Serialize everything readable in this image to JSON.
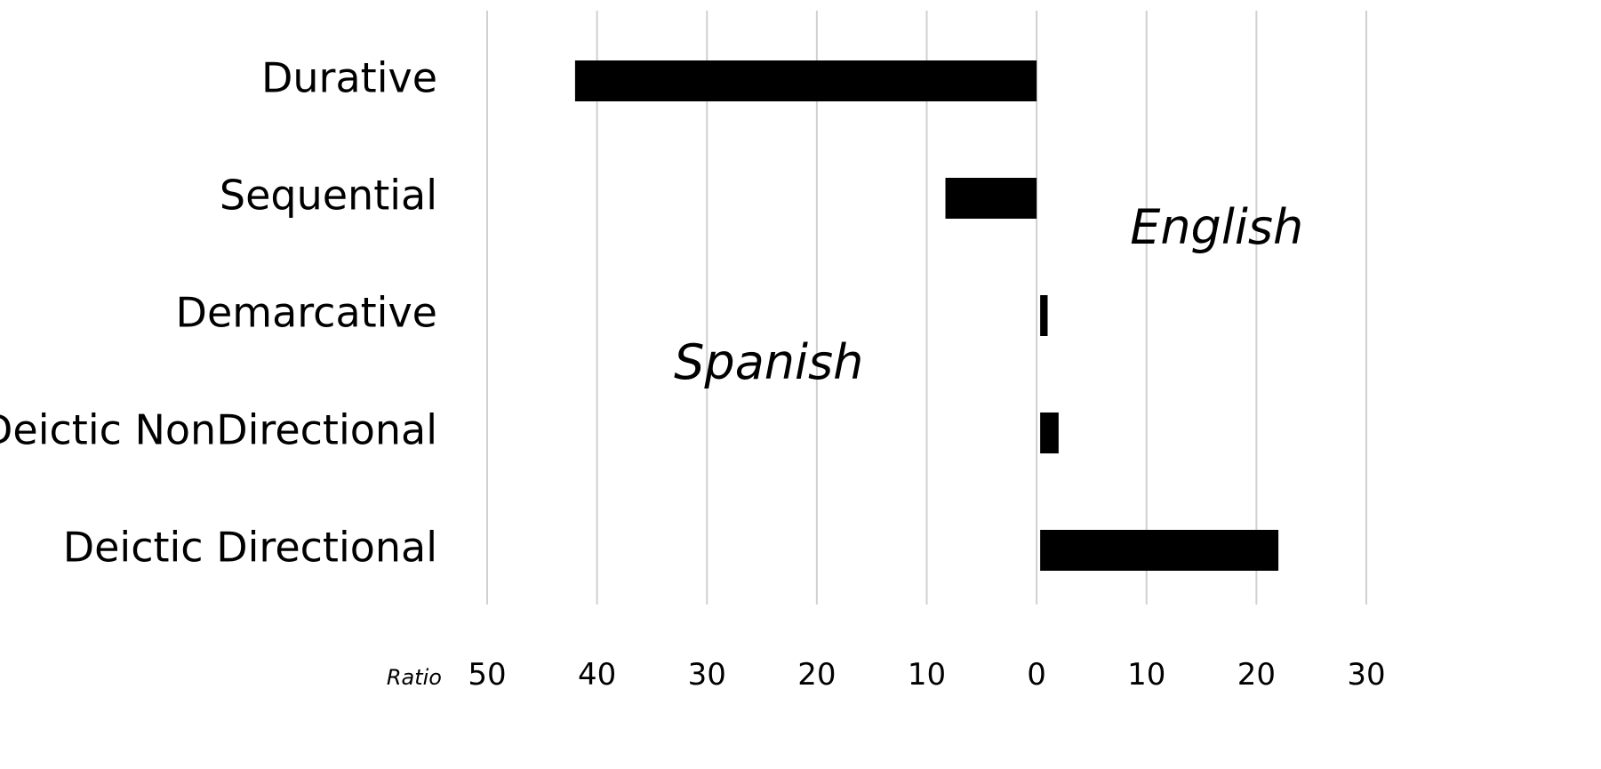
{
  "chart_data": {
    "type": "bar",
    "orientation": "horizontal",
    "categories": [
      "Durative",
      "Sequential",
      "Demarcative",
      "Deictic NonDirectional",
      "Deictic Directional"
    ],
    "values": [
      -42,
      -8.3,
      1,
      2,
      22
    ],
    "xlim": [
      -50,
      30
    ],
    "xticks": [
      -50,
      -40,
      -30,
      -20,
      -10,
      0,
      10,
      20,
      30
    ],
    "xtick_labels": [
      "50",
      "40",
      "30",
      "20",
      "10",
      "0",
      "10",
      "20",
      "30"
    ],
    "xlabel": "Ratio",
    "grid": true,
    "legend": "none",
    "annotations": [
      {
        "text": "Spanish",
        "x": -33,
        "category_index": 2.4
      },
      {
        "text": "English",
        "x": 8.5,
        "category_index": 1.25
      }
    ],
    "bar_color": "#000000",
    "grid_color": "#d0d0d0"
  }
}
